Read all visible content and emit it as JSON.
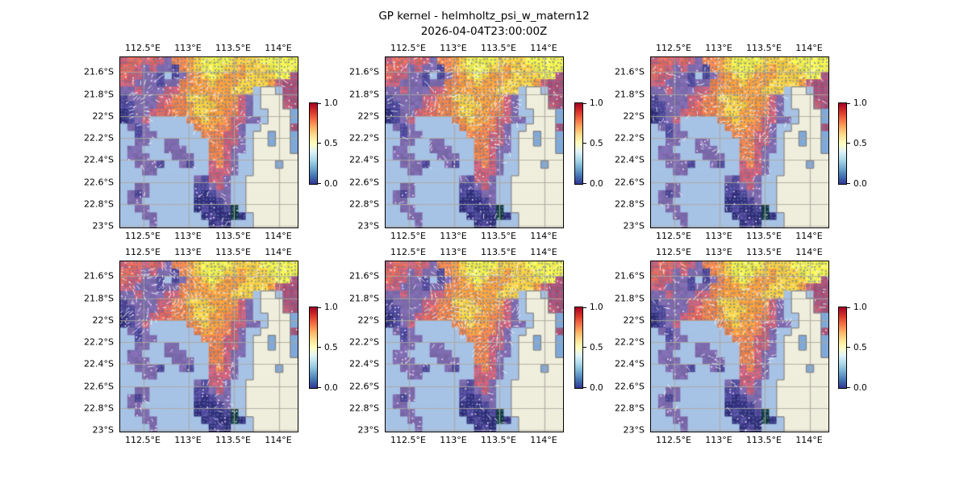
{
  "figure": {
    "title": "GP kernel - helmholtz_psi_w_matern12",
    "subtitle": "2026-04-04T23:00:00Z"
  },
  "axes": {
    "x_tick_labels": [
      "112.5°E",
      "113°E",
      "113.5°E",
      "114°E"
    ],
    "y_tick_labels": [
      "21.6°S",
      "21.8°S",
      "22°S",
      "22.2°S",
      "22.4°S",
      "22.6°S",
      "22.8°S",
      "23°S"
    ]
  },
  "colorbar": {
    "tick_labels": [
      "1.0",
      "0.5",
      "0.0"
    ],
    "gradient_top_to_bottom": [
      "#a50026",
      "#d73027",
      "#f46d43",
      "#fdae61",
      "#fee090",
      "#ffffbf",
      "#e0f3f8",
      "#abd9e9",
      "#74add1",
      "#4575b4",
      "#313695"
    ]
  },
  "chart_data": {
    "type": "heatmap",
    "title": "GP kernel - helmholtz_psi_w_matern12",
    "subtitle": "2026-04-04T23:00:00Z",
    "x_ticks": [
      "112.5°E",
      "113°E",
      "113.5°E",
      "114°E"
    ],
    "y_ticks": [
      "21.6°S",
      "21.8°S",
      "22°S",
      "22.2°S",
      "22.4°S",
      "22.6°S",
      "22.8°S",
      "23°S"
    ],
    "x_range_deg": [
      112.3,
      114.3
    ],
    "y_range_deg": [
      -23.05,
      -21.5
    ],
    "colorbar_range": [
      0.0,
      1.0
    ],
    "grid_cols": 24,
    "grid_rows": 23,
    "cell_codes": [
      "rRRrRrPooOyYYYYyyyyYYYYY",
      "RRrPrPPDoOyYYYyyOyyyYYYY",
      "RrrPPDSDPoOyYyOOOyyyyYYm",
      "rrPPPDPPooOOyOOOyyyyOrmm",
      "PPrPPPrroOOOOOOyyySLLSmm",
      "DPPPPrrooyyyOOOOrPSLLLmm",
      "DDPPPrRooOyyyOOorPSLLLrm",
      "NDPPrRRooOyyOOoorPSSLLLW",
      "NDPrSSSSSoOyOOorrPPSLLLW",
      "SPDPSSSSSSoOOoorPSSLLLLm",
      "SSDPPSSSSSSooorrPSLLWLLW",
      "SSPPSSPPSSSSoorrPSLLWLLW",
      "SPPSSSPPPSSSoorPPSLLLLLW",
      "SPPPSSSPPPSSoorPSSLLLLLL",
      "SSPPPDSSPDSSrorPSSLLLWLL",
      "SSSPPSSSSSSSrrrPSSLLLLLL",
      "SSSSSSSSSSPDrrPSSLLLLLLL",
      "SSPPSSSSSSDDPrPSSLLLLLLL",
      "SPDPSSSSSSDNDPPSSLLLLLLL",
      "SPPSSSSSSSNNNDPSSLLLLLLL",
      "SSPPSSSSSSNDNNDKSLLLLLLL",
      "SSSPPSSSSSSNDNNKNSLLLLLL",
      "SSSSPSSSSSSSNDNSSSLLLLLL"
    ],
    "code_values": {
      "Y": 1.0,
      "y": 0.88,
      "O": 0.76,
      "o": 0.66,
      "R": 0.58,
      "r": 0.48,
      "m": 0.42,
      "P": 0.34,
      "D": 0.22,
      "N": 0.12,
      "K": 0.04,
      "S": "masked-shallow",
      "W": "lake-inlet",
      "L": "land"
    },
    "palette": {
      "Y": "#f1ee4e",
      "y": "#f9cf45",
      "O": "#f99e3f",
      "o": "#f0854e",
      "R": "#e76a5e",
      "r": "#cf6078",
      "m": "#ad4f75",
      "P": "#8268ae",
      "D": "#4f4499",
      "N": "#332e7c",
      "K": "#0d3b3c",
      "S": "#a6c2e5",
      "W": "#7fa9d9",
      "L": "#efeedd"
    },
    "panels": [
      {
        "id": "r1c1",
        "seed": 1,
        "emphasis": [
          0.05,
          0.08,
          0.55,
          0.5
        ],
        "strength": 0.22
      },
      {
        "id": "r1c2",
        "seed": 2,
        "emphasis": [
          0.2,
          0.05,
          0.75,
          0.55
        ],
        "strength": 0.32
      },
      {
        "id": "r1c3",
        "seed": 3,
        "emphasis": [
          0.25,
          0.15,
          0.8,
          0.6
        ],
        "strength": 0.25
      },
      {
        "id": "r2c1",
        "seed": 4,
        "emphasis": [
          0.0,
          0.05,
          0.45,
          0.45
        ],
        "strength": 0.38
      },
      {
        "id": "r2c2",
        "seed": 5,
        "emphasis": [
          0.2,
          0.05,
          0.75,
          0.55
        ],
        "strength": 0.32
      },
      {
        "id": "r2c3",
        "seed": 6,
        "emphasis": [
          0.25,
          0.15,
          0.8,
          0.6
        ],
        "strength": 0.25
      }
    ]
  },
  "style": {
    "gridline_color": "rgba(173,168,158,0.9)",
    "coast_color": "#87898a",
    "arrow_dot_color": "rgba(92,126,168,0.85)",
    "arrow_dot_light_color": "rgba(228,238,248,0.9)",
    "arrow_streak_color": "rgba(255,255,255,0.82)",
    "background": "#ffffff"
  }
}
